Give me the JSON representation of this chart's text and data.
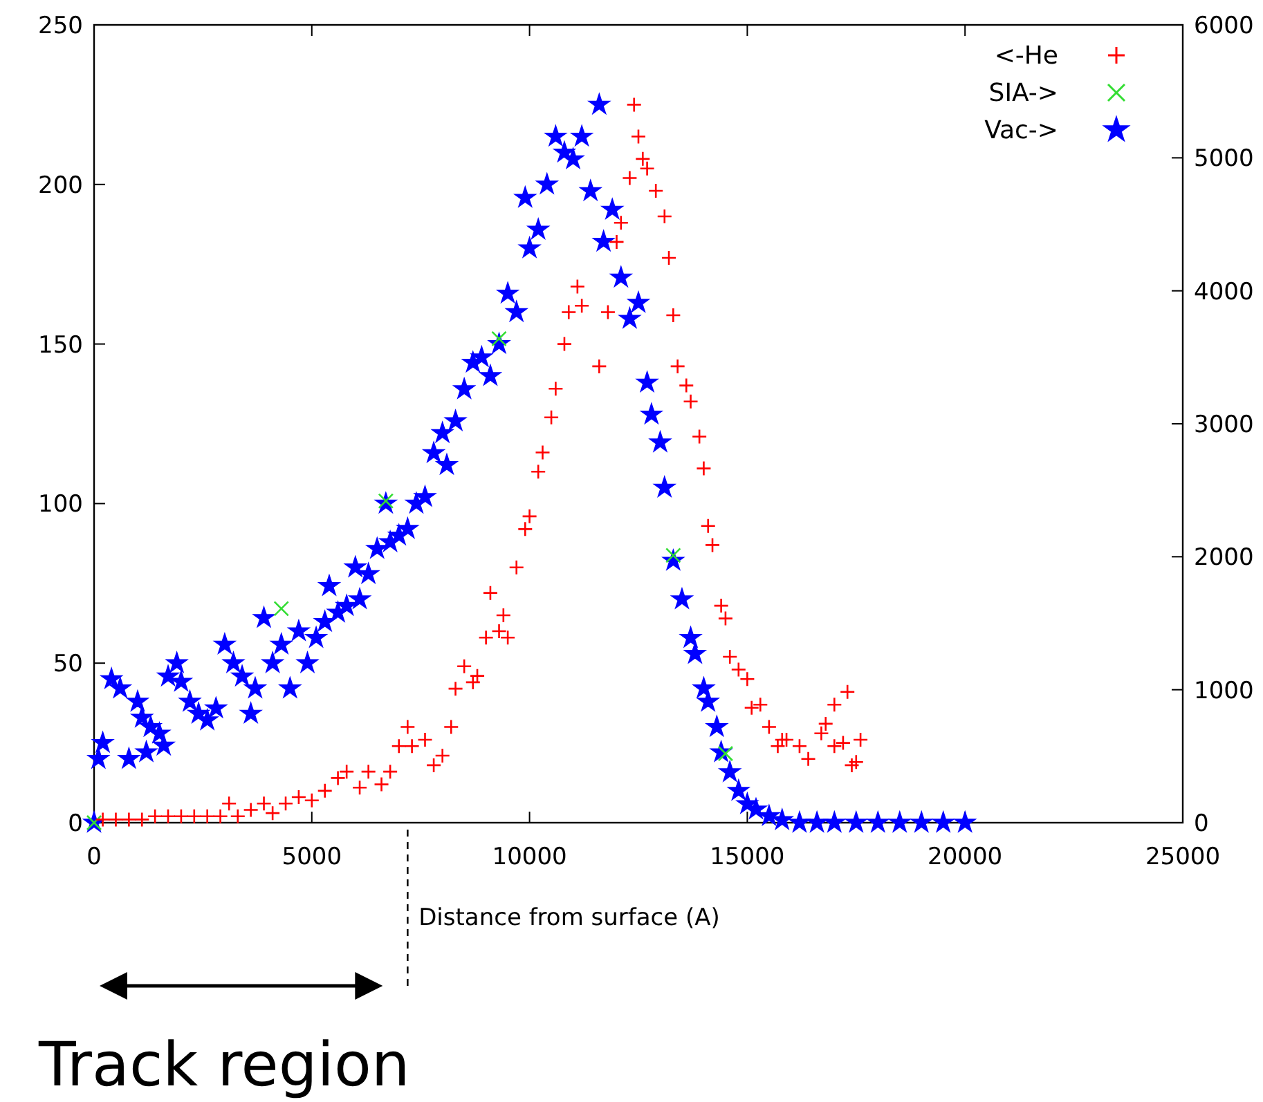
{
  "chart_data": {
    "type": "scatter",
    "xlabel": "Distance from surface (A)",
    "xlim": [
      0,
      25000
    ],
    "xticks": [
      0,
      5000,
      10000,
      15000,
      20000,
      25000
    ],
    "ylim": [
      0,
      250
    ],
    "yticks": [
      0,
      50,
      100,
      150,
      200,
      250
    ],
    "y2lim": [
      0,
      6000
    ],
    "y2ticks": [
      0,
      1000,
      2000,
      3000,
      4000,
      5000,
      6000
    ],
    "grid": false,
    "legend": "top right",
    "ref_lines": [
      {
        "axis": "x",
        "value": 7200,
        "label": "Track region",
        "line_style": "dashed"
      }
    ],
    "series": [
      {
        "name": "<-He",
        "color": "#ff0000",
        "marker": "cross",
        "x": [
          200,
          500,
          800,
          1100,
          1400,
          1700,
          2000,
          2300,
          2600,
          2900,
          3100,
          3300,
          3600,
          3900,
          4100,
          4400,
          4700,
          5000,
          5300,
          5600,
          5800,
          6100,
          6300,
          6600,
          6800,
          7000,
          7200,
          7300,
          7600,
          7800,
          8000,
          8200,
          8300,
          8500,
          8700,
          8800,
          9000,
          9100,
          9300,
          9400,
          9500,
          9700,
          9900,
          10000,
          10200,
          10300,
          10500,
          10600,
          10800,
          10900,
          11100,
          11200,
          11600,
          11800,
          12000,
          12100,
          12300,
          12400,
          12500,
          12600,
          12700,
          12900,
          13100,
          13200,
          13300,
          13400,
          13600,
          13700,
          13900,
          14000,
          14100,
          14200,
          14400,
          14500,
          14600,
          14800,
          15000,
          15100,
          15300,
          15500,
          15700,
          15800,
          15900,
          16200,
          16400,
          16700,
          16800,
          17000,
          17000,
          17200,
          17300,
          17400,
          17500,
          17600
        ],
        "values": [
          1,
          1,
          1,
          1,
          2,
          2,
          2,
          2,
          2,
          2,
          6,
          2,
          4,
          6,
          3,
          6,
          8,
          7,
          10,
          14,
          16,
          11,
          16,
          12,
          16,
          24,
          30,
          24,
          26,
          18,
          21,
          30,
          42,
          49,
          44,
          46,
          58,
          72,
          60,
          65,
          58,
          80,
          92,
          96,
          110,
          116,
          127,
          136,
          150,
          160,
          168,
          162,
          143,
          160,
          182,
          188,
          202,
          225,
          215,
          208,
          205,
          198,
          190,
          177,
          159,
          143,
          137,
          132,
          121,
          111,
          93,
          87,
          68,
          64,
          52,
          48,
          45,
          36,
          37,
          30,
          24,
          26,
          26,
          24,
          20,
          28,
          31,
          24,
          37,
          25,
          41,
          18,
          19,
          26
        ]
      },
      {
        "name": "SIA->",
        "color": "#33dd33",
        "marker": "x",
        "axis": "y2",
        "x": [
          0,
          4300,
          6700,
          9300,
          13300,
          14500
        ],
        "values": [
          0,
          1610,
          2420,
          3640,
          2010,
          520
        ]
      },
      {
        "name": "Vac->",
        "color": "#0000ff",
        "marker": "star",
        "axis": "y2",
        "x": [
          0,
          100,
          200,
          400,
          600,
          800,
          1000,
          1100,
          1200,
          1300,
          1500,
          1600,
          1700,
          1900,
          2000,
          2200,
          2400,
          2600,
          2800,
          3000,
          3200,
          3400,
          3600,
          3700,
          3900,
          4100,
          4300,
          4500,
          4700,
          4900,
          5100,
          5300,
          5400,
          5600,
          5800,
          6000,
          6100,
          6300,
          6500,
          6700,
          6800,
          7000,
          7200,
          7400,
          7600,
          7800,
          8000,
          8100,
          8300,
          8500,
          8700,
          8900,
          9100,
          9300,
          9500,
          9700,
          9900,
          10000,
          10200,
          10400,
          10600,
          10800,
          11000,
          11200,
          11400,
          11600,
          11700,
          11900,
          12100,
          12300,
          12500,
          12700,
          12800,
          13000,
          13100,
          13300,
          13500,
          13700,
          13800,
          14000,
          14100,
          14300,
          14400,
          14600,
          14800,
          15000,
          15200,
          15500,
          15800,
          16200,
          16600,
          17000,
          17500,
          18000,
          18500,
          19000,
          19500,
          20000
        ],
        "values": [
          0,
          480,
          600,
          1080,
          1010,
          480,
          910,
          790,
          530,
          720,
          670,
          580,
          1100,
          1200,
          1060,
          910,
          820,
          770,
          860,
          1340,
          1200,
          1100,
          820,
          1010,
          1540,
          1200,
          1340,
          1010,
          1440,
          1200,
          1390,
          1510,
          1780,
          1580,
          1630,
          1920,
          1680,
          1870,
          2060,
          2400,
          2110,
          2160,
          2210,
          2400,
          2450,
          2780,
          2930,
          2690,
          3020,
          3260,
          3460,
          3500,
          3360,
          3600,
          3980,
          3840,
          4700,
          4320,
          4460,
          4800,
          5160,
          5040,
          4990,
          5160,
          4750,
          5400,
          4370,
          4610,
          4100,
          3790,
          3910,
          3310,
          3070,
          2860,
          2520,
          1970,
          1680,
          1390,
          1270,
          1010,
          910,
          720,
          530,
          380,
          240,
          140,
          100,
          50,
          20,
          0,
          0,
          0,
          0,
          0,
          0,
          0,
          0,
          0
        ]
      }
    ]
  }
}
